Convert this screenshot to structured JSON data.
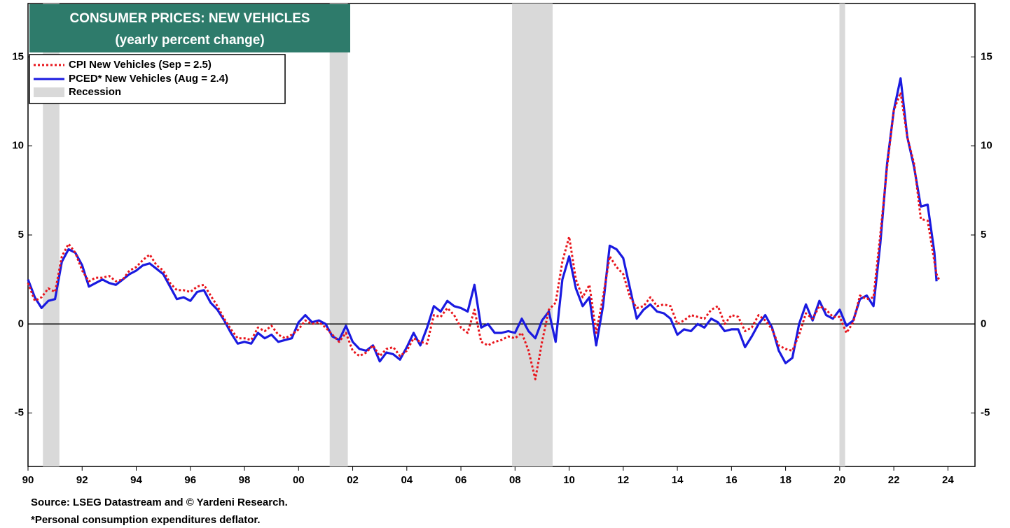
{
  "chart_data": {
    "type": "line",
    "title": "CONSUMER PRICES: NEW VEHICLES",
    "subtitle": "(yearly percent change)",
    "source": "Source: LSEG Datastream and © Yardeni Research.",
    "footnote": "*Personal consumption expenditures deflator.",
    "xlim": [
      1990,
      2025
    ],
    "xticks": [
      {
        "value": 1990,
        "label": "90"
      },
      {
        "value": 1992,
        "label": "92"
      },
      {
        "value": 1994,
        "label": "94"
      },
      {
        "value": 1996,
        "label": "96"
      },
      {
        "value": 1998,
        "label": "98"
      },
      {
        "value": 2000,
        "label": "00"
      },
      {
        "value": 2002,
        "label": "02"
      },
      {
        "value": 2004,
        "label": "04"
      },
      {
        "value": 2006,
        "label": "06"
      },
      {
        "value": 2008,
        "label": "08"
      },
      {
        "value": 2010,
        "label": "10"
      },
      {
        "value": 2012,
        "label": "12"
      },
      {
        "value": 2014,
        "label": "14"
      },
      {
        "value": 2016,
        "label": "16"
      },
      {
        "value": 2018,
        "label": "18"
      },
      {
        "value": 2020,
        "label": "20"
      },
      {
        "value": 2022,
        "label": "22"
      },
      {
        "value": 2024,
        "label": "24"
      }
    ],
    "ylim": [
      -8,
      18
    ],
    "yticks": [
      -5,
      0,
      5,
      10,
      15
    ],
    "recession_label": "Recession",
    "recession_color": "#d9d9d9",
    "recessions": [
      [
        1990.55,
        1991.16
      ],
      [
        2001.15,
        2001.82
      ],
      [
        2007.89,
        2009.39
      ],
      [
        2019.99,
        2020.2
      ]
    ],
    "x": [
      1990,
      1990.25,
      1990.5,
      1990.75,
      1991,
      1991.25,
      1991.5,
      1991.75,
      1992,
      1992.25,
      1992.5,
      1992.75,
      1993,
      1993.25,
      1993.5,
      1993.75,
      1994,
      1994.25,
      1994.5,
      1994.75,
      1995,
      1995.25,
      1995.5,
      1995.75,
      1996,
      1996.25,
      1996.5,
      1996.75,
      1997,
      1997.25,
      1997.5,
      1997.75,
      1998,
      1998.25,
      1998.5,
      1998.75,
      1999,
      1999.25,
      1999.5,
      1999.75,
      2000,
      2000.25,
      2000.5,
      2000.75,
      2001,
      2001.25,
      2001.5,
      2001.75,
      2002,
      2002.25,
      2002.5,
      2002.75,
      2003,
      2003.25,
      2003.5,
      2003.75,
      2004,
      2004.25,
      2004.5,
      2004.75,
      2005,
      2005.25,
      2005.5,
      2005.75,
      2006,
      2006.25,
      2006.5,
      2006.75,
      2007,
      2007.25,
      2007.5,
      2007.75,
      2008,
      2008.25,
      2008.5,
      2008.75,
      2009,
      2009.25,
      2009.5,
      2009.75,
      2010,
      2010.25,
      2010.5,
      2010.75,
      2011,
      2011.25,
      2011.5,
      2011.75,
      2012,
      2012.25,
      2012.5,
      2012.75,
      2013,
      2013.25,
      2013.5,
      2013.75,
      2014,
      2014.25,
      2014.5,
      2014.75,
      2015,
      2015.25,
      2015.5,
      2015.75,
      2016,
      2016.25,
      2016.5,
      2016.75,
      2017,
      2017.25,
      2017.5,
      2017.75,
      2018,
      2018.25,
      2018.5,
      2018.75,
      2019,
      2019.25,
      2019.5,
      2019.75,
      2020,
      2020.25,
      2020.5,
      2020.75,
      2021,
      2021.25,
      2021.5,
      2021.75,
      2022,
      2022.25,
      2022.5,
      2022.75,
      2023,
      2023.25,
      2023.5,
      2023.58,
      2023.67
    ],
    "series": [
      {
        "name": "CPI New Vehicles (Sep = 2.5)",
        "color": "#e8141b",
        "dash": true,
        "values": [
          2.3,
          1.3,
          1.5,
          2.0,
          1.8,
          3.8,
          4.5,
          4.0,
          3.0,
          2.4,
          2.6,
          2.6,
          2.7,
          2.4,
          2.5,
          3.0,
          3.2,
          3.6,
          3.9,
          3.3,
          3.0,
          2.3,
          1.9,
          1.9,
          1.8,
          2.1,
          2.2,
          1.6,
          1.0,
          0.3,
          -0.3,
          -0.8,
          -0.8,
          -0.9,
          -0.2,
          -0.4,
          -0.1,
          -0.6,
          -0.8,
          -0.6,
          -0.3,
          0.2,
          0.0,
          0.1,
          -0.2,
          -0.6,
          -1.0,
          -0.5,
          -1.5,
          -1.8,
          -1.6,
          -1.2,
          -1.8,
          -1.4,
          -1.3,
          -1.8,
          -1.5,
          -0.8,
          -1.0,
          -1.1,
          0.5,
          0.4,
          0.9,
          0.5,
          -0.2,
          -0.5,
          0.8,
          -1.0,
          -1.2,
          -1.0,
          -0.9,
          -0.7,
          -0.8,
          -0.5,
          -1.5,
          -3.1,
          -1.0,
          0.8,
          1.2,
          3.5,
          4.9,
          2.5,
          1.5,
          2.2,
          -0.5,
          1.5,
          3.8,
          3.2,
          2.8,
          1.5,
          0.9,
          1.0,
          1.5,
          1.0,
          1.1,
          1.0,
          0.0,
          0.2,
          0.5,
          0.4,
          0.3,
          0.8,
          1.0,
          0.0,
          0.5,
          0.4,
          -0.4,
          -0.2,
          0.5,
          0.2,
          -0.3,
          -1.2,
          -1.4,
          -1.5,
          -0.6,
          0.6,
          0.3,
          1.0,
          0.8,
          0.4,
          0.4,
          -0.5,
          0.1,
          1.6,
          1.4,
          1.5,
          5.0,
          8.8,
          12.0,
          13.0,
          10.5,
          9.0,
          5.9,
          5.8,
          3.5,
          2.8,
          2.5
        ]
      },
      {
        "name": "PCED* New Vehicles (Aug = 2.4)",
        "color": "#1a1ae0",
        "dash": false,
        "values": [
          2.5,
          1.5,
          0.9,
          1.3,
          1.4,
          3.5,
          4.2,
          4.0,
          3.3,
          2.1,
          2.3,
          2.5,
          2.3,
          2.2,
          2.5,
          2.8,
          3.0,
          3.3,
          3.4,
          3.1,
          2.8,
          2.1,
          1.4,
          1.5,
          1.3,
          1.8,
          1.9,
          1.2,
          0.8,
          0.2,
          -0.5,
          -1.1,
          -1.0,
          -1.1,
          -0.5,
          -0.8,
          -0.6,
          -1.0,
          -0.9,
          -0.8,
          0.1,
          0.5,
          0.1,
          0.2,
          0.0,
          -0.7,
          -0.9,
          -0.1,
          -1.0,
          -1.4,
          -1.5,
          -1.2,
          -2.1,
          -1.6,
          -1.7,
          -2.0,
          -1.3,
          -0.5,
          -1.2,
          -0.2,
          1.0,
          0.7,
          1.3,
          1.0,
          0.9,
          0.7,
          2.2,
          -0.2,
          0.0,
          -0.5,
          -0.5,
          -0.4,
          -0.5,
          0.3,
          -0.4,
          -0.8,
          0.2,
          0.7,
          -1.0,
          2.5,
          3.8,
          2.0,
          1.0,
          1.5,
          -1.2,
          1.0,
          4.4,
          4.2,
          3.7,
          2.0,
          0.3,
          0.8,
          1.1,
          0.7,
          0.6,
          0.3,
          -0.6,
          -0.3,
          -0.4,
          0.0,
          -0.2,
          0.3,
          0.1,
          -0.4,
          -0.3,
          -0.3,
          -1.3,
          -0.7,
          0.0,
          0.5,
          -0.2,
          -1.5,
          -2.2,
          -1.9,
          0.0,
          1.1,
          0.2,
          1.3,
          0.5,
          0.3,
          0.8,
          -0.1,
          0.2,
          1.4,
          1.6,
          1.0,
          4.5,
          9.0,
          12.0,
          13.8,
          10.5,
          8.8,
          6.6,
          6.7,
          4.0,
          2.4,
          null
        ]
      }
    ]
  }
}
